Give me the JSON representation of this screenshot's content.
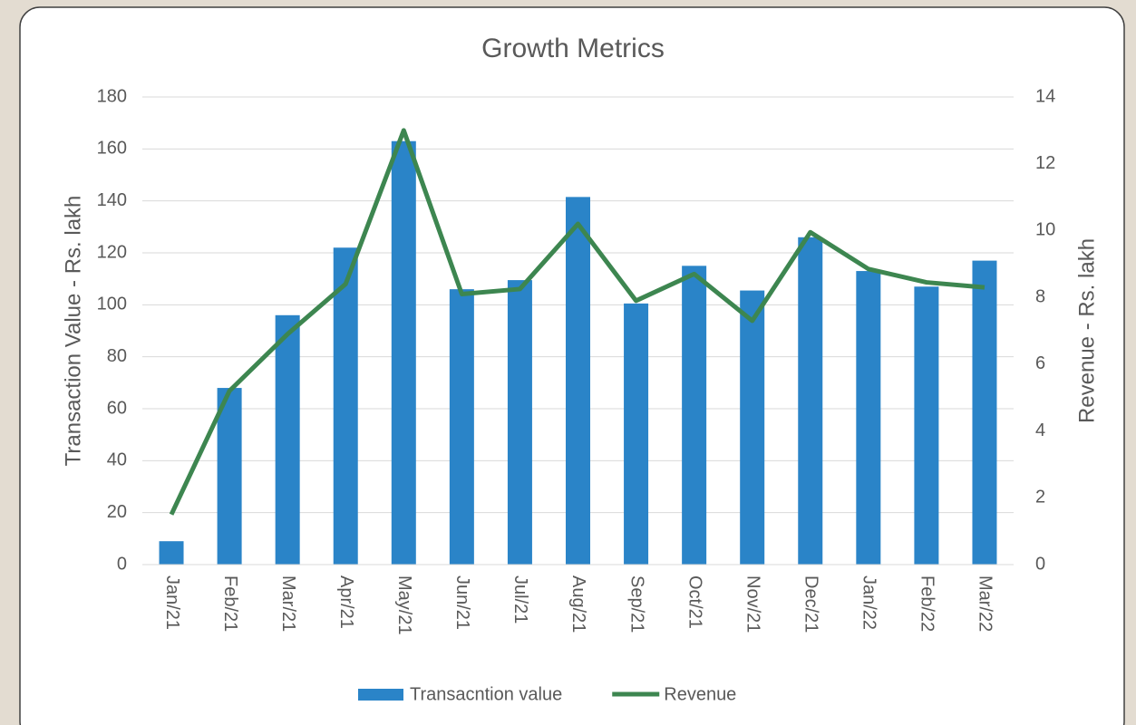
{
  "chart_data": {
    "type": "bar_line",
    "title": "Growth Metrics",
    "y_label": "Transaction Value - Rs. lakh",
    "y2_label": "Revenue - Rs. lakh",
    "categories": [
      "Jan/21",
      "Feb/21",
      "Mar/21",
      "Apr/21",
      "May/21",
      "Jun/21",
      "Jul/21",
      "Aug/21",
      "Sep/21",
      "Oct/21",
      "Nov/21",
      "Dec/21",
      "Jan/22",
      "Feb/22",
      "Mar/22"
    ],
    "series": [
      {
        "name": "Transacntion value",
        "type": "bar",
        "color": "#2a84c8",
        "values": [
          9,
          68,
          96,
          122,
          163,
          106,
          109.5,
          141.5,
          100.5,
          115,
          105.5,
          126,
          113,
          107,
          117
        ]
      },
      {
        "name": "Revenue",
        "type": "line",
        "axis": "y2",
        "color": "#3d8650",
        "values": [
          1.5,
          5.2,
          6.9,
          8.4,
          13.0,
          8.1,
          8.25,
          10.2,
          7.9,
          8.7,
          7.3,
          9.95,
          8.85,
          8.45,
          8.3
        ]
      }
    ],
    "ylim": [
      0,
      180
    ],
    "yticks": [
      0,
      20,
      40,
      60,
      80,
      100,
      120,
      140,
      160,
      180
    ],
    "y2lim": [
      0,
      14
    ],
    "y2ticks": [
      0,
      2,
      4,
      6,
      8,
      10,
      12,
      14
    ],
    "grid": true,
    "legend": "bottom"
  }
}
